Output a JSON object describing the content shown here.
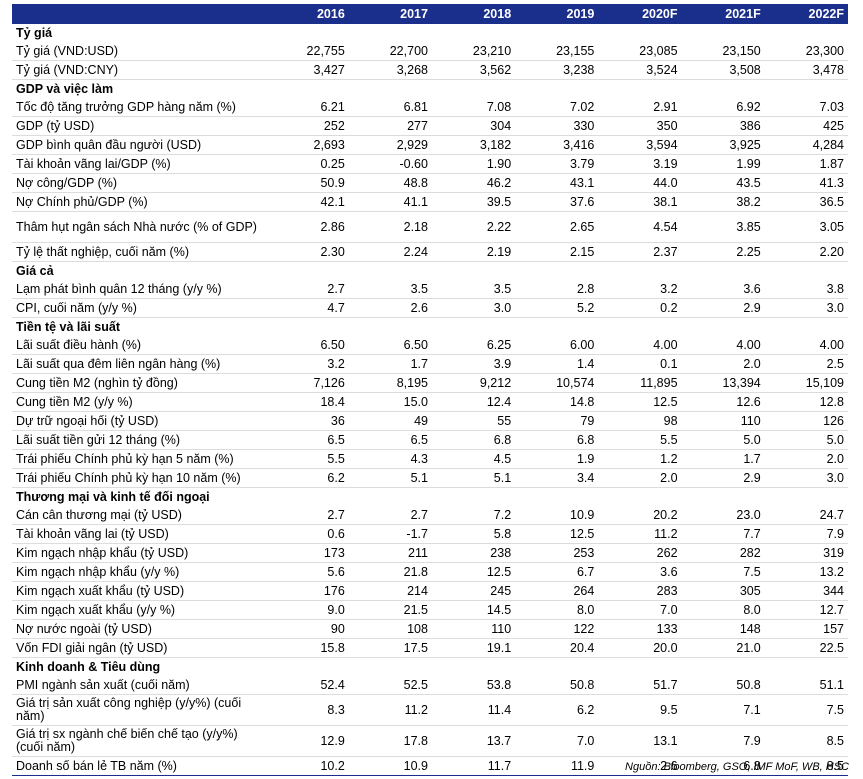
{
  "header": {
    "first": "",
    "years": [
      "2016",
      "2017",
      "2018",
      "2019",
      "2020F",
      "2021F",
      "2022F"
    ]
  },
  "sections": [
    {
      "title": "Tỷ giá",
      "rows": [
        {
          "label": "Tỷ giá (VND:USD)",
          "values": [
            "22,755",
            "22,700",
            "23,210",
            "23,155",
            "23,085",
            "23,150",
            "23,300"
          ]
        },
        {
          "label": "Tỷ giá (VND:CNY)",
          "values": [
            "3,427",
            "3,268",
            "3,562",
            "3,238",
            "3,524",
            "3,508",
            "3,478"
          ]
        }
      ]
    },
    {
      "title": "GDP và việc làm",
      "rows": [
        {
          "label": "Tốc độ tăng trưởng GDP hàng năm (%)",
          "values": [
            "6.21",
            "6.81",
            "7.08",
            "7.02",
            "2.91",
            "6.92",
            "7.03"
          ]
        },
        {
          "label": "GDP (tỷ USD)",
          "values": [
            "252",
            "277",
            "304",
            "330",
            "350",
            "386",
            "425"
          ]
        },
        {
          "label": "GDP bình quân đầu người (USD)",
          "values": [
            "2,693",
            "2,929",
            "3,182",
            "3,416",
            "3,594",
            "3,925",
            "4,284"
          ]
        },
        {
          "label": "Tài khoản vãng lai/GDP (%)",
          "values": [
            "0.25",
            "-0.60",
            "1.90",
            "3.79",
            "3.19",
            "1.99",
            "1.87"
          ]
        },
        {
          "label": "Nợ công/GDP (%)",
          "values": [
            "50.9",
            "48.8",
            "46.2",
            "43.1",
            "44.0",
            "43.5",
            "41.3"
          ]
        },
        {
          "label": "Nợ Chính phủ/GDP (%)",
          "values": [
            "42.1",
            "41.1",
            "39.5",
            "37.6",
            "38.1",
            "38.2",
            "36.5"
          ]
        },
        {
          "label": "Thâm hụt ngân sách Nhà nước (% of GDP)",
          "values": [
            "2.86",
            "2.18",
            "2.22",
            "2.65",
            "4.54",
            "3.85",
            "3.05"
          ],
          "tall": true
        },
        {
          "label": "Tỷ lệ thất nghiệp, cuối năm (%)",
          "values": [
            "2.30",
            "2.24",
            "2.19",
            "2.15",
            "2.37",
            "2.25",
            "2.20"
          ]
        }
      ]
    },
    {
      "title": "Giá cả",
      "rows": [
        {
          "label": "Lạm phát bình quân 12 tháng (y/y %)",
          "values": [
            "2.7",
            "3.5",
            "3.5",
            "2.8",
            "3.2",
            "3.6",
            "3.8"
          ]
        },
        {
          "label": "CPI, cuối năm (y/y %)",
          "values": [
            "4.7",
            "2.6",
            "3.0",
            "5.2",
            "0.2",
            "2.9",
            "3.0"
          ]
        }
      ]
    },
    {
      "title": "Tiền tệ và lãi suất",
      "rows": [
        {
          "label": "Lãi suất điều hành (%)",
          "values": [
            "6.50",
            "6.50",
            "6.25",
            "6.00",
            "4.00",
            "4.00",
            "4.00"
          ]
        },
        {
          "label": "Lãi suất qua đêm liên ngân hàng (%)",
          "values": [
            "3.2",
            "1.7",
            "3.9",
            "1.4",
            "0.1",
            "2.0",
            "2.5"
          ]
        },
        {
          "label": "Cung tiền M2 (nghìn tỷ đồng)",
          "values": [
            "7,126",
            "8,195",
            "9,212",
            "10,574",
            "11,895",
            "13,394",
            "15,109"
          ]
        },
        {
          "label": "Cung tiền M2 (y/y %)",
          "values": [
            "18.4",
            "15.0",
            "12.4",
            "14.8",
            "12.5",
            "12.6",
            "12.8"
          ]
        },
        {
          "label": "Dự trữ ngoại hối (tỷ USD)",
          "values": [
            "36",
            "49",
            "55",
            "79",
            "98",
            "110",
            "126"
          ]
        },
        {
          "label": "Lãi suất tiền gửi 12 tháng (%)",
          "values": [
            "6.5",
            "6.5",
            "6.8",
            "6.8",
            "5.5",
            "5.0",
            "5.0"
          ]
        },
        {
          "label": "Trái phiếu Chính phủ kỳ hạn 5 năm (%)",
          "values": [
            "5.5",
            "4.3",
            "4.5",
            "1.9",
            "1.2",
            "1.7",
            "2.0"
          ]
        },
        {
          "label": "Trái phiếu Chính phủ kỳ hạn 10 năm (%)",
          "values": [
            "6.2",
            "5.1",
            "5.1",
            "3.4",
            "2.0",
            "2.9",
            "3.0"
          ]
        }
      ]
    },
    {
      "title": "Thương mại và kinh tế đối ngoại",
      "rows": [
        {
          "label": "Cán cân thương mại (tỷ USD)",
          "values": [
            "2.7",
            "2.7",
            "7.2",
            "10.9",
            "20.2",
            "23.0",
            "24.7"
          ]
        },
        {
          "label": "Tài khoản vãng lai (tỷ USD)",
          "values": [
            "0.6",
            "-1.7",
            "5.8",
            "12.5",
            "11.2",
            "7.7",
            "7.9"
          ]
        },
        {
          "label": "Kim ngạch nhập khẩu (tỷ USD)",
          "values": [
            "173",
            "211",
            "238",
            "253",
            "262",
            "282",
            "319"
          ]
        },
        {
          "label": "Kim ngạch nhập khẩu (y/y %)",
          "values": [
            "5.6",
            "21.8",
            "12.5",
            "6.7",
            "3.6",
            "7.5",
            "13.2"
          ]
        },
        {
          "label": "Kim ngạch xuất khẩu (tỷ USD)",
          "values": [
            "176",
            "214",
            "245",
            "264",
            "283",
            "305",
            "344"
          ]
        },
        {
          "label": "Kim ngạch xuất khẩu (y/y %)",
          "values": [
            "9.0",
            "21.5",
            "14.5",
            "8.0",
            "7.0",
            "8.0",
            "12.7"
          ]
        },
        {
          "label": "Nợ nước ngoài (tỷ USD)",
          "values": [
            "90",
            "108",
            "110",
            "122",
            "133",
            "148",
            "157"
          ]
        },
        {
          "label": "Vốn FDI giải ngân (tỷ USD)",
          "values": [
            "15.8",
            "17.5",
            "19.1",
            "20.4",
            "20.0",
            "21.0",
            "22.5"
          ]
        }
      ]
    },
    {
      "title": "Kinh doanh & Tiêu dùng",
      "rows": [
        {
          "label": "PMI ngành sản xuất (cuối năm)",
          "values": [
            "52.4",
            "52.5",
            "53.8",
            "50.8",
            "51.7",
            "50.8",
            "51.1"
          ]
        },
        {
          "label": "Giá trị sản xuất công nghiệp (y/y%) (cuối năm)",
          "values": [
            "8.3",
            "11.2",
            "11.4",
            "6.2",
            "9.5",
            "7.1",
            "7.5"
          ],
          "tall": true
        },
        {
          "label": "Giá trị sx ngành chế biến chế tạo (y/y%) (cuối năm)",
          "values": [
            "12.9",
            "17.8",
            "13.7",
            "7.0",
            "13.1",
            "7.9",
            "8.5"
          ],
          "tall": true
        },
        {
          "label": "Doanh số bán lẻ TB năm (%)",
          "values": [
            "10.2",
            "10.9",
            "11.7",
            "11.9",
            "2.6",
            "6.8",
            "8.5"
          ]
        }
      ]
    }
  ],
  "source": "Nguồn: Bloomberg, GSO, IMF MoF, WB, HSC"
}
